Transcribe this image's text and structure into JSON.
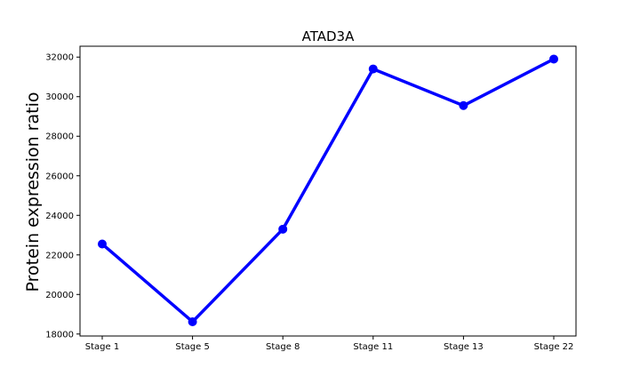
{
  "chart_data": {
    "type": "line",
    "title": "ATAD3A",
    "xlabel": "",
    "ylabel": "Protein expression ratio",
    "categories": [
      "Stage 1",
      "Stage 5",
      "Stage 8",
      "Stage 11",
      "Stage 13",
      "Stage 22"
    ],
    "series": [
      {
        "values": [
          22550,
          18620,
          23300,
          31400,
          29550,
          31900
        ],
        "color": "#0000ff"
      }
    ],
    "ylim": [
      17900,
      32550
    ],
    "yticks": [
      18000,
      20000,
      22000,
      24000,
      26000,
      28000,
      30000,
      32000
    ],
    "grid": false
  }
}
